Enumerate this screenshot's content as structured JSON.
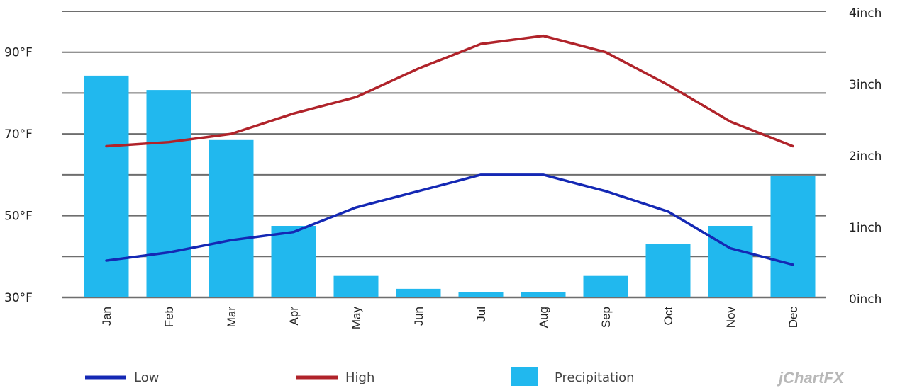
{
  "chart_data": {
    "type": "bar",
    "categories": [
      "Jan",
      "Feb",
      "Mar",
      "Apr",
      "May",
      "Jun",
      "Jul",
      "Aug",
      "Sep",
      "Oct",
      "Nov",
      "Dec"
    ],
    "series": [
      {
        "name": "Low",
        "type": "line",
        "axis": "left",
        "color": "#1428b4",
        "values": [
          39,
          41,
          44,
          46,
          52,
          56,
          60,
          60,
          56,
          51,
          42,
          38
        ]
      },
      {
        "name": "High",
        "type": "line",
        "axis": "left",
        "color": "#b0232a",
        "values": [
          67,
          68,
          70,
          75,
          79,
          86,
          92,
          94,
          90,
          82,
          73,
          67
        ]
      },
      {
        "name": "Precipitation",
        "type": "bar",
        "axis": "right",
        "color": "#21b8ee",
        "values": [
          3.1,
          2.9,
          2.2,
          1.0,
          0.3,
          0.12,
          0.07,
          0.07,
          0.3,
          0.75,
          1.0,
          1.7
        ]
      }
    ],
    "left_axis": {
      "ylim": [
        30,
        100
      ],
      "ticks": [
        30,
        50,
        70,
        90
      ],
      "tick_labels": [
        "30°F",
        "50°F",
        "70°F",
        "90°F"
      ]
    },
    "right_axis": {
      "ylim": [
        0,
        4
      ],
      "ticks": [
        0,
        1,
        2,
        3,
        4
      ],
      "tick_labels": [
        "0inch",
        "1inch",
        "2inch",
        "3inch",
        "4inch"
      ]
    },
    "grid": true,
    "legend": "bottom",
    "branding": "jChartFX"
  }
}
